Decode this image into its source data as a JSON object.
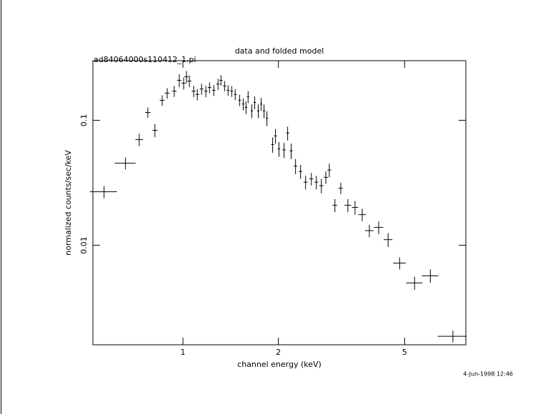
{
  "chart_data": {
    "type": "errorbar",
    "title": "data and folded model",
    "subtitle": "ad84064000s110412_1.pi",
    "xlabel": "channel energy (keV)",
    "ylabel": "normalized counts/sec/keV",
    "annotation": "4-Jun-1998 12:46",
    "xscale": "log",
    "yscale": "log",
    "color": "#000000",
    "xlim": [
      0.52,
      7.8
    ],
    "ylim": [
      0.0016,
      0.3
    ],
    "xticks": [
      1,
      2,
      5
    ],
    "yticks": [
      0.01,
      0.1
    ],
    "x": [
      0.564,
      0.659,
      0.728,
      0.775,
      0.816,
      0.86,
      0.892,
      0.939,
      0.974,
      1.005,
      1.026,
      1.048,
      1.081,
      1.11,
      1.145,
      1.181,
      1.213,
      1.251,
      1.29,
      1.318,
      1.353,
      1.388,
      1.425,
      1.462,
      1.509,
      1.549,
      1.581,
      1.605,
      1.649,
      1.684,
      1.728,
      1.764,
      1.802,
      1.84,
      1.918,
      1.958,
      2.008,
      2.084,
      2.139,
      2.194,
      2.265,
      2.349,
      2.436,
      2.541,
      2.634,
      2.732,
      2.822,
      2.894,
      3.015,
      3.145,
      3.312,
      3.489,
      3.675,
      3.871,
      4.142,
      4.436,
      4.823,
      5.376,
      6.028,
      7.101
    ],
    "xerr": [
      0.055,
      0.05,
      0.02,
      0.015,
      0.015,
      0.015,
      0.015,
      0.015,
      0.015,
      0.015,
      0.015,
      0.015,
      0.015,
      0.015,
      0.015,
      0.015,
      0.015,
      0.015,
      0.015,
      0.015,
      0.015,
      0.015,
      0.015,
      0.015,
      0.015,
      0.015,
      0.015,
      0.015,
      0.015,
      0.015,
      0.015,
      0.015,
      0.015,
      0.015,
      0.02,
      0.02,
      0.02,
      0.025,
      0.025,
      0.025,
      0.03,
      0.03,
      0.035,
      0.035,
      0.035,
      0.04,
      0.04,
      0.04,
      0.05,
      0.05,
      0.08,
      0.08,
      0.1,
      0.12,
      0.14,
      0.14,
      0.22,
      0.32,
      0.36,
      0.74
    ],
    "values": [
      0.0268,
      0.0454,
      0.0701,
      0.1156,
      0.0832,
      0.1445,
      0.165,
      0.171,
      0.209,
      0.198,
      0.223,
      0.206,
      0.171,
      0.161,
      0.178,
      0.171,
      0.183,
      0.174,
      0.195,
      0.209,
      0.188,
      0.174,
      0.171,
      0.161,
      0.145,
      0.135,
      0.127,
      0.154,
      0.119,
      0.139,
      0.119,
      0.135,
      0.119,
      0.104,
      0.064,
      0.075,
      0.059,
      0.058,
      0.079,
      0.057,
      0.043,
      0.039,
      0.032,
      0.034,
      0.032,
      0.03,
      0.035,
      0.04,
      0.0209,
      0.0286,
      0.0209,
      0.0201,
      0.0176,
      0.0131,
      0.0139,
      0.0111,
      0.0072,
      0.005,
      0.0057,
      0.00187
    ],
    "yerr": [
      0.003,
      0.005,
      0.008,
      0.011,
      0.01,
      0.014,
      0.016,
      0.017,
      0.025,
      0.022,
      0.025,
      0.022,
      0.018,
      0.017,
      0.018,
      0.018,
      0.018,
      0.017,
      0.02,
      0.02,
      0.018,
      0.017,
      0.017,
      0.016,
      0.015,
      0.015,
      0.015,
      0.017,
      0.015,
      0.016,
      0.015,
      0.016,
      0.015,
      0.014,
      0.009,
      0.01,
      0.008,
      0.008,
      0.01,
      0.008,
      0.006,
      0.005,
      0.004,
      0.004,
      0.004,
      0.004,
      0.004,
      0.005,
      0.0025,
      0.003,
      0.0025,
      0.0025,
      0.002,
      0.0015,
      0.0016,
      0.0014,
      0.0008,
      0.0006,
      0.0007,
      0.0002
    ]
  }
}
